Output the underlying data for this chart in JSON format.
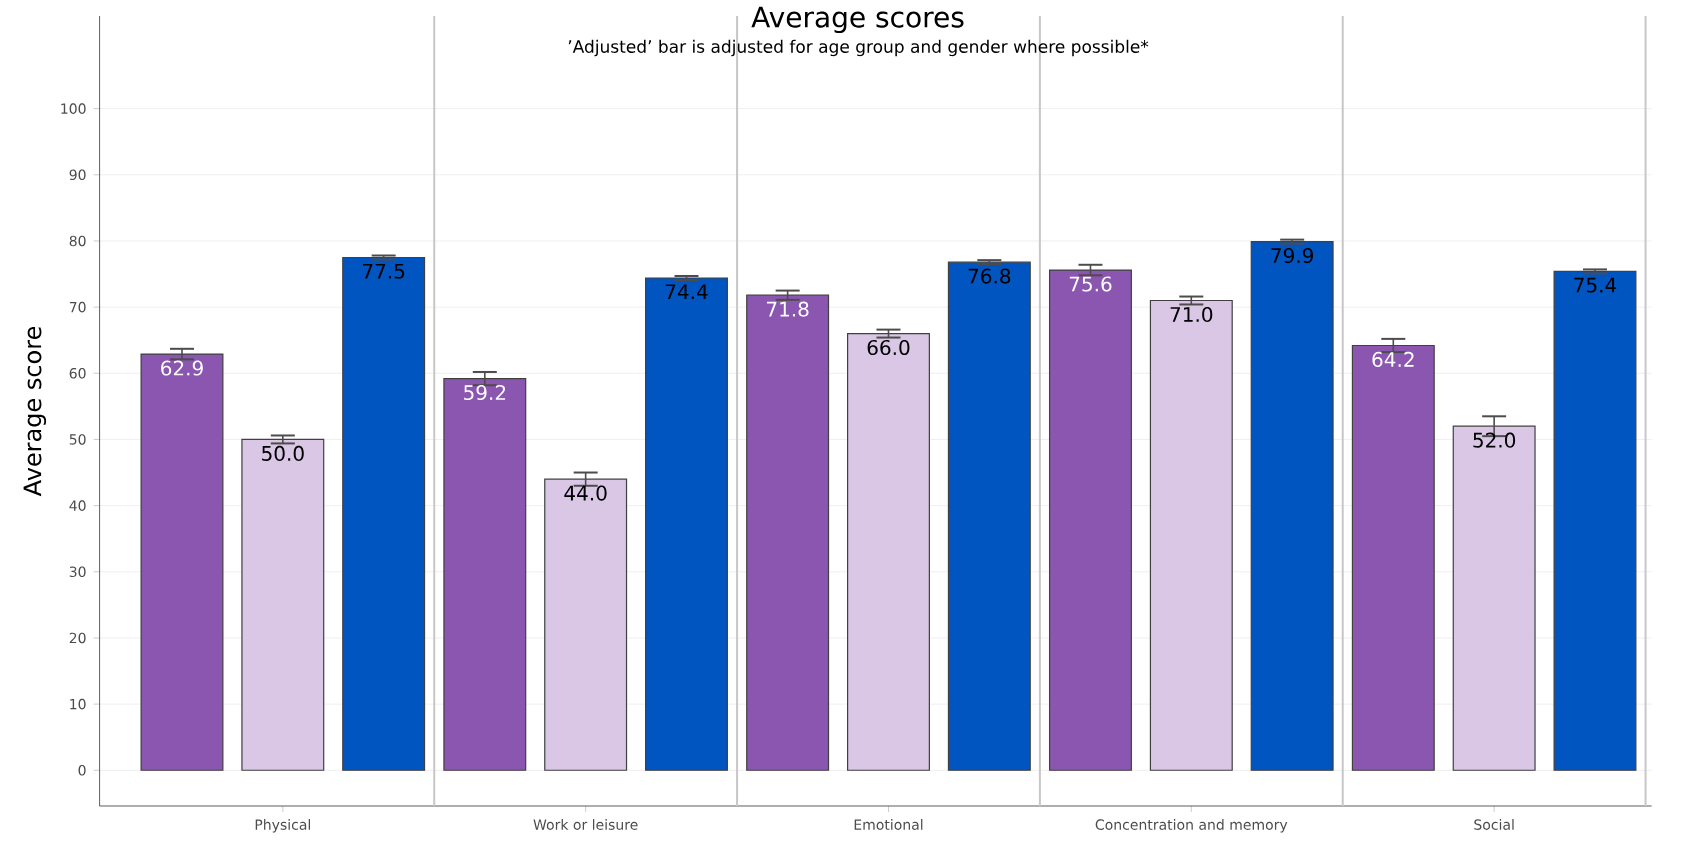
{
  "chart_data": {
    "type": "bar",
    "title": "Average scores",
    "subtitle": "’Adjusted’ bar is adjusted for age group and gender where possible*",
    "ylabel": "Average score",
    "categories": [
      "Physical",
      "Work or leisure",
      "Emotional",
      "Concentration and memory",
      "Social"
    ],
    "series": [
      {
        "color": "#8b56b0",
        "values": [
          62.9,
          59.2,
          71.8,
          75.6,
          64.2
        ],
        "errors": [
          0.8,
          1.0,
          0.7,
          0.8,
          1.0
        ],
        "value_labels": [
          "62.9",
          "59.2",
          "71.8",
          "75.6",
          "64.2"
        ]
      },
      {
        "color": "#dac7e6",
        "values": [
          50.0,
          44.0,
          66.0,
          71.0,
          52.0
        ],
        "errors": [
          0.6,
          1.0,
          0.6,
          0.6,
          1.5
        ],
        "value_labels": [
          "50.0",
          "44.0",
          "66.0",
          "71.0",
          "52.0"
        ]
      },
      {
        "color": "#0055c0",
        "values": [
          77.5,
          74.4,
          76.8,
          79.9,
          75.4
        ],
        "errors": [
          0.3,
          0.3,
          0.3,
          0.3,
          0.3
        ],
        "value_labels": [
          "77.5",
          "74.4",
          "76.8",
          "79.9",
          "75.4"
        ]
      }
    ],
    "ylim": [
      -5.4,
      114
    ],
    "yticks": [
      0,
      10,
      20,
      30,
      40,
      50,
      60,
      70,
      80,
      90,
      100
    ],
    "grid": "y"
  }
}
